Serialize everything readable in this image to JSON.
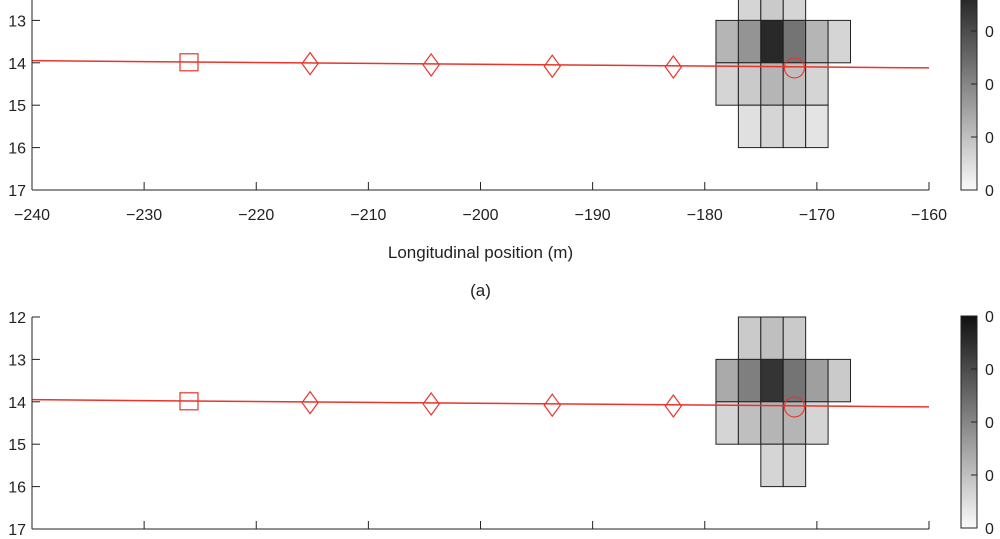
{
  "chart_data": [
    {
      "type": "heatmap",
      "caption": "(a)",
      "title": "",
      "xlabel": "Longitudinal position (m)",
      "ylabel": "",
      "xlim": [
        -240,
        -160
      ],
      "ylim": [
        12,
        17
      ],
      "y_reversed": true,
      "x_ticks": [
        -240,
        -230,
        -220,
        -210,
        -200,
        -190,
        -180,
        -170,
        -160
      ],
      "x_tick_labels": [
        "−240",
        "−230",
        "−220",
        "−210",
        "−200",
        "−190",
        "−180",
        "−170",
        "−160"
      ],
      "y_ticks": [
        13,
        14,
        15,
        16,
        17
      ],
      "y_tick_labels": [
        "13",
        "14",
        "15",
        "16",
        "17"
      ],
      "cell_width": 2,
      "cell_height": 1,
      "cells": [
        {
          "x": -176,
          "y": 12.5,
          "v": 0.15
        },
        {
          "x": -174,
          "y": 12.5,
          "v": 0.2
        },
        {
          "x": -172,
          "y": 12.5,
          "v": 0.15
        },
        {
          "x": -178,
          "y": 13.5,
          "v": 0.3
        },
        {
          "x": -176,
          "y": 13.5,
          "v": 0.45
        },
        {
          "x": -174,
          "y": 13.5,
          "v": 0.95
        },
        {
          "x": -172,
          "y": 13.5,
          "v": 0.6
        },
        {
          "x": -170,
          "y": 13.5,
          "v": 0.3
        },
        {
          "x": -168,
          "y": 13.5,
          "v": 0.15
        },
        {
          "x": -178,
          "y": 14.5,
          "v": 0.15
        },
        {
          "x": -176,
          "y": 14.5,
          "v": 0.2
        },
        {
          "x": -174,
          "y": 14.5,
          "v": 0.3
        },
        {
          "x": -172,
          "y": 14.5,
          "v": 0.25
        },
        {
          "x": -170,
          "y": 14.5,
          "v": 0.15
        },
        {
          "x": -176,
          "y": 15.5,
          "v": 0.1
        },
        {
          "x": -174,
          "y": 15.5,
          "v": 0.15
        },
        {
          "x": -172,
          "y": 15.5,
          "v": 0.12
        },
        {
          "x": -170,
          "y": 15.5,
          "v": 0.08
        }
      ],
      "trajectory": {
        "x": [
          -240,
          -160
        ],
        "y": [
          13.95,
          14.12
        ]
      },
      "square_marker": {
        "x": -226,
        "y": 14.0
      },
      "diamond_markers": {
        "x": [
          -215.2,
          -204.4,
          -193.6,
          -182.8
        ],
        "y": [
          14.02,
          14.05,
          14.08,
          14.1
        ]
      },
      "circle_marker": {
        "x": -172,
        "y": 14.12
      },
      "colorbar_tick_labels": [
        "0",
        "0",
        "0",
        "0"
      ]
    },
    {
      "type": "heatmap",
      "caption": "",
      "title": "",
      "xlabel": "",
      "ylabel": "",
      "xlim": [
        -240,
        -160
      ],
      "ylim": [
        12,
        17
      ],
      "y_reversed": true,
      "x_ticks": [
        -240,
        -230,
        -220,
        -210,
        -200,
        -190,
        -180,
        -170,
        -160
      ],
      "x_tick_labels": [],
      "y_ticks": [
        12,
        13,
        14,
        15,
        16,
        17
      ],
      "y_tick_labels": [
        "12",
        "13",
        "14",
        "15",
        "16",
        "17"
      ],
      "cell_width": 2,
      "cell_height": 1,
      "cells": [
        {
          "x": -176,
          "y": 12.5,
          "v": 0.2
        },
        {
          "x": -174,
          "y": 12.5,
          "v": 0.25
        },
        {
          "x": -172,
          "y": 12.5,
          "v": 0.2
        },
        {
          "x": -178,
          "y": 13.5,
          "v": 0.35
        },
        {
          "x": -176,
          "y": 13.5,
          "v": 0.55
        },
        {
          "x": -174,
          "y": 13.5,
          "v": 0.9
        },
        {
          "x": -172,
          "y": 13.5,
          "v": 0.6
        },
        {
          "x": -170,
          "y": 13.5,
          "v": 0.4
        },
        {
          "x": -168,
          "y": 13.5,
          "v": 0.2
        },
        {
          "x": -178,
          "y": 14.5,
          "v": 0.15
        },
        {
          "x": -176,
          "y": 14.5,
          "v": 0.25
        },
        {
          "x": -174,
          "y": 14.5,
          "v": 0.3
        },
        {
          "x": -172,
          "y": 14.5,
          "v": 0.3
        },
        {
          "x": -170,
          "y": 14.5,
          "v": 0.15
        },
        {
          "x": -174,
          "y": 15.5,
          "v": 0.15
        },
        {
          "x": -172,
          "y": 15.5,
          "v": 0.15
        }
      ],
      "trajectory": {
        "x": [
          -240,
          -160
        ],
        "y": [
          13.95,
          14.12
        ]
      },
      "square_marker": {
        "x": -226,
        "y": 14.0
      },
      "diamond_markers": {
        "x": [
          -215.2,
          -204.4,
          -193.6,
          -182.8
        ],
        "y": [
          14.02,
          14.05,
          14.08,
          14.1
        ]
      },
      "circle_marker": {
        "x": -172,
        "y": 14.12
      },
      "colorbar_tick_labels": [
        "0",
        "0",
        "0",
        "0",
        "0"
      ]
    }
  ],
  "colors": {
    "trajectory": "#e8342a",
    "axis": "#222222",
    "cell_border": "#222222"
  }
}
